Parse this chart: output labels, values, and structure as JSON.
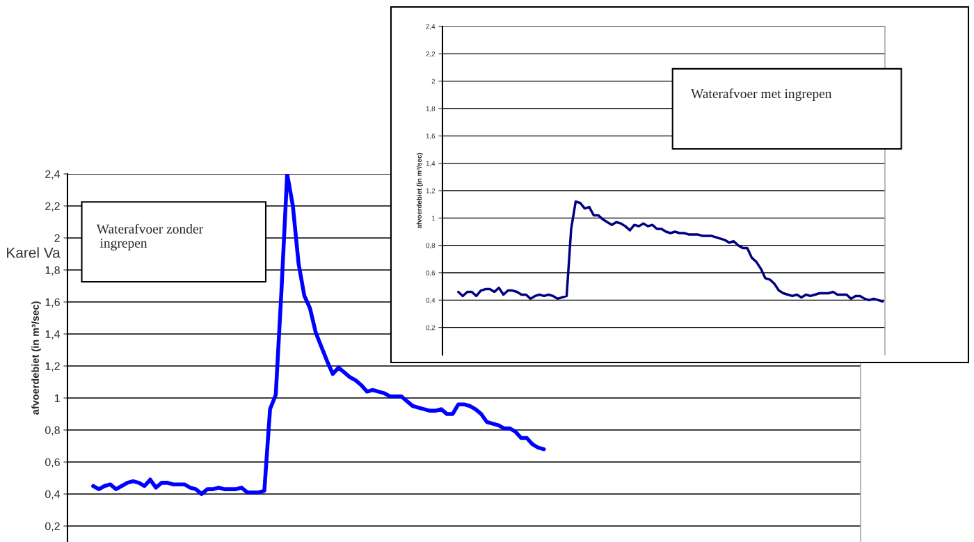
{
  "chart_data": [
    {
      "type": "line",
      "title": "Waterafvoer zonder\n ingrepen",
      "ylabel": "afvoerdebiet (in m³/sec)",
      "annotations": [
        "Karel Va"
      ],
      "categories": [
        null,
        null,
        null,
        null,
        null,
        null,
        null,
        null,
        null,
        null,
        null,
        null,
        null,
        null,
        null,
        null,
        null,
        null,
        null,
        null,
        null,
        null,
        null,
        null,
        null,
        null,
        null,
        null,
        null,
        null,
        null,
        null,
        null,
        null,
        null,
        null,
        null,
        null,
        null,
        null,
        null,
        null,
        null,
        null,
        null,
        null,
        null,
        null,
        null,
        null,
        null,
        null,
        null,
        null,
        null,
        null,
        null,
        null,
        null,
        null,
        null,
        null,
        null,
        null,
        null,
        null,
        null,
        null,
        null,
        null,
        null,
        null,
        null,
        null,
        null,
        null,
        null,
        null,
        null,
        null,
        null,
        null,
        null,
        null,
        null,
        null,
        null,
        null,
        null,
        null,
        null,
        null,
        null,
        null,
        null,
        null,
        null,
        null,
        null,
        null,
        null,
        null,
        null,
        null,
        null,
        null,
        null,
        null,
        null,
        null,
        null,
        null,
        null,
        null,
        null,
        null,
        null,
        null,
        null,
        null,
        null,
        null,
        null,
        null,
        null,
        null,
        null,
        null,
        null,
        null,
        null,
        null,
        null,
        null,
        null,
        null,
        null,
        null,
        null
      ],
      "series": [
        {
          "color": "#0000ff",
          "values": [
            null,
            null,
            null,
            null,
            0.45,
            0.43,
            0.45,
            0.46,
            0.43,
            0.45,
            0.47,
            0.48,
            0.47,
            0.45,
            0.49,
            0.44,
            0.47,
            0.47,
            0.46,
            0.46,
            0.46,
            0.44,
            0.43,
            0.4,
            0.43,
            0.43,
            0.44,
            0.43,
            0.43,
            0.43,
            0.44,
            0.41,
            0.41,
            0.41,
            0.42,
            0.93,
            1.02,
            1.67,
            2.4,
            2.2,
            1.84,
            1.64,
            1.56,
            1.41,
            1.32,
            1.23,
            1.15,
            1.19,
            1.16,
            1.13,
            1.11,
            1.08,
            1.04,
            1.05,
            1.04,
            1.03,
            1.01,
            1.01,
            1.01,
            0.98,
            0.95,
            0.94,
            0.93,
            0.92,
            0.92,
            0.93,
            0.9,
            0.9,
            0.96,
            0.96,
            0.95,
            0.93,
            0.9,
            0.85,
            0.84,
            0.83,
            0.81,
            0.81,
            0.79,
            0.75,
            0.75,
            0.71,
            0.69,
            0.68,
            null,
            null,
            null,
            null,
            null,
            null,
            null,
            null,
            null,
            null,
            null,
            null,
            null,
            null,
            null,
            null,
            null,
            null,
            null,
            null,
            null,
            null,
            null,
            null,
            null,
            null,
            null,
            null,
            null,
            null,
            null,
            null,
            null,
            null,
            null,
            null,
            null,
            null,
            null,
            null,
            null,
            null,
            null,
            null,
            null,
            null,
            null,
            null,
            null,
            null,
            null,
            null,
            null,
            null,
            null
          ]
        }
      ],
      "ylim": [
        0.1,
        2.4
      ],
      "yticks": [
        {
          "value": 0.2,
          "label": "0,2"
        },
        {
          "value": 0.4,
          "label": "0,4"
        },
        {
          "value": 0.6,
          "label": "0,6"
        },
        {
          "value": 0.8,
          "label": "0,8"
        },
        {
          "value": 1,
          "label": "1"
        },
        {
          "value": 1.2,
          "label": "1,2"
        },
        {
          "value": 1.4,
          "label": "1,4"
        },
        {
          "value": 1.6,
          "label": "1,6"
        },
        {
          "value": 1.8,
          "label": "1,8"
        },
        {
          "value": 2,
          "label": "2"
        },
        {
          "value": 2.2,
          "label": "2,2"
        },
        {
          "value": 2.4,
          "label": "2,4"
        }
      ],
      "grid": "y",
      "tick_labels": "y"
    },
    {
      "type": "line",
      "title": "Waterafvoer met ingrepen",
      "ylabel": "afvoerdebiet (in m³/sec)",
      "categories": [
        null,
        null,
        null,
        null,
        null,
        null,
        null,
        null,
        null,
        null,
        null,
        null,
        null,
        null,
        null,
        null,
        null,
        null,
        null,
        null,
        null,
        null,
        null,
        null,
        null,
        null,
        null,
        null,
        null,
        null,
        null,
        null,
        null,
        null,
        null,
        null,
        null,
        null,
        null,
        null,
        null,
        null,
        null,
        null,
        null,
        null,
        null,
        null,
        null,
        null,
        null,
        null,
        null,
        null,
        null,
        null,
        null,
        null,
        null,
        null,
        null,
        null,
        null,
        null,
        null,
        null,
        null,
        null,
        null,
        null,
        null,
        null,
        null,
        null,
        null,
        null,
        null,
        null,
        null,
        null,
        null,
        null,
        null,
        null,
        null,
        null,
        null,
        null,
        null,
        null,
        null,
        null,
        null,
        null,
        null,
        null,
        null,
        null
      ],
      "series": [
        {
          "color": "#000080",
          "values": [
            null,
            null,
            null,
            0.46,
            0.43,
            0.46,
            0.46,
            0.43,
            0.47,
            0.48,
            0.48,
            0.46,
            0.49,
            0.44,
            0.47,
            0.47,
            0.46,
            0.44,
            0.44,
            0.41,
            0.43,
            0.44,
            0.43,
            0.44,
            0.43,
            0.41,
            0.42,
            0.43,
            0.92,
            1.12,
            1.11,
            1.07,
            1.08,
            1.02,
            1.02,
            0.99,
            0.97,
            0.95,
            0.97,
            0.96,
            0.94,
            0.91,
            0.95,
            0.94,
            0.96,
            0.94,
            0.95,
            0.92,
            0.92,
            0.9,
            0.89,
            0.9,
            0.89,
            0.89,
            0.88,
            0.88,
            0.88,
            0.87,
            0.87,
            0.87,
            0.86,
            0.85,
            0.84,
            0.82,
            0.83,
            0.8,
            0.78,
            0.78,
            0.71,
            0.68,
            0.63,
            0.56,
            0.55,
            0.52,
            0.47,
            0.45,
            0.44,
            0.43,
            0.44,
            0.42,
            0.44,
            0.43,
            0.44,
            0.45,
            0.45,
            0.45,
            0.46,
            0.44,
            0.44,
            0.44,
            0.41,
            0.43,
            0.43,
            0.41,
            0.4,
            0.41,
            0.4,
            0.39
          ]
        }
      ],
      "ylim": [
        0,
        2.4
      ],
      "yticks": [
        {
          "value": 0.2,
          "label": "0,2"
        },
        {
          "value": 0.4,
          "label": "0,4"
        },
        {
          "value": 0.6,
          "label": "0,6"
        },
        {
          "value": 0.8,
          "label": "0,8"
        },
        {
          "value": 1,
          "label": "1"
        },
        {
          "value": 1.2,
          "label": "1,2"
        },
        {
          "value": 1.4,
          "label": "1,4"
        },
        {
          "value": 1.6,
          "label": "1,6"
        },
        {
          "value": 1.8,
          "label": "1,8"
        },
        {
          "value": 2,
          "label": "2"
        },
        {
          "value": 2.2,
          "label": "2,2"
        },
        {
          "value": 2.4,
          "label": "2,4"
        }
      ],
      "grid": "y",
      "tick_labels": "y"
    }
  ]
}
